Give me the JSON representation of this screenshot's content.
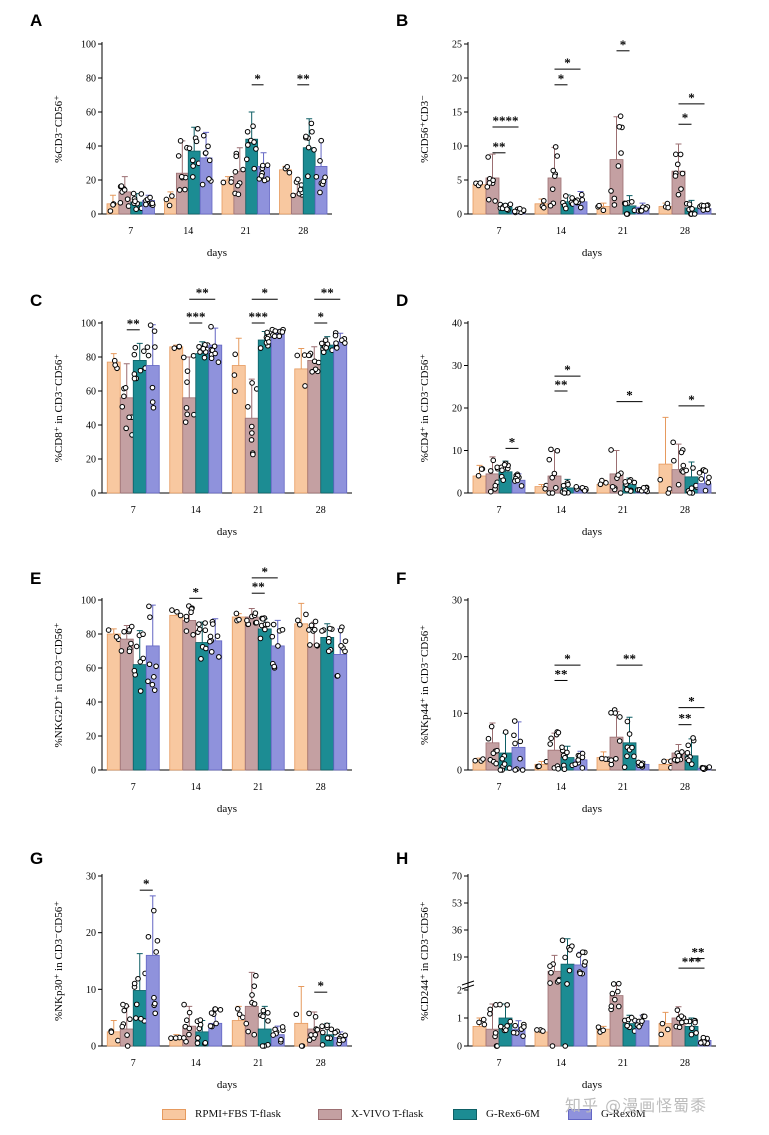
{
  "colors": {
    "RPMI+FBS T-flask": "#f8c8a0",
    "X-VIVO T-flask": "#c4a0a2",
    "G-Rex6-6M": "#1c8c93",
    "G-Rex6M": "#8f92dc",
    "RPMI+FBS T-flask_edge": "#e69a5e",
    "X-VIVO T-flask_edge": "#9c6f72",
    "G-Rex6-6M_edge": "#0e5f65",
    "G-Rex6M_edge": "#6366c4"
  },
  "legend": {
    "items": [
      {
        "name": "RPMI+FBS T-flask"
      },
      {
        "name": "X-VIVO T-flask"
      },
      {
        "name": "G-Rex6-6M"
      },
      {
        "name": "G-Rex6M"
      }
    ]
  },
  "watermark": "知乎 @漫画怪蜀黍",
  "chart_data": [
    {
      "panel": "A",
      "type": "bar",
      "ylabel": "%CD3⁻CD56⁺",
      "xlabel": "days",
      "ylim": [
        0,
        100
      ],
      "yticks": [
        0,
        20,
        40,
        60,
        80,
        100
      ],
      "categories": [
        "7",
        "14",
        "21",
        "28"
      ],
      "series": [
        {
          "name": "RPMI+FBS T-flask",
          "values": [
            6,
            9,
            20,
            26
          ],
          "err": [
            5,
            4,
            2,
            2
          ]
        },
        {
          "name": "X-VIVO T-flask",
          "values": [
            13,
            24,
            25,
            12
          ],
          "err": [
            9,
            19,
            14,
            8
          ]
        },
        {
          "name": "G-Rex6-6M",
          "values": [
            7,
            37,
            44,
            39
          ],
          "err": [
            5,
            14,
            16,
            17
          ]
        },
        {
          "name": "G-Rex6M",
          "values": [
            8,
            33,
            28,
            28
          ],
          "err": [
            3,
            15,
            8,
            15
          ]
        }
      ],
      "significance": [
        {
          "cat": 2,
          "from": 2,
          "to": 3,
          "label": "*",
          "y": 76
        },
        {
          "cat": 3,
          "from": 1,
          "to": 2,
          "label": "**",
          "y": 76
        }
      ]
    },
    {
      "panel": "B",
      "type": "bar",
      "ylabel": "%CD56⁺CD3⁻",
      "xlabel": "days",
      "ylim": [
        0,
        25
      ],
      "yticks": [
        0,
        5,
        10,
        15,
        20,
        25
      ],
      "categories": [
        "7",
        "14",
        "21",
        "28"
      ],
      "series": [
        {
          "name": "RPMI+FBS T-flask",
          "values": [
            4.3,
            1.5,
            1.1,
            1.1
          ],
          "err": [
            0.3,
            0.7,
            0.5,
            0.5
          ]
        },
        {
          "name": "X-VIVO T-flask",
          "values": [
            5.3,
            5.3,
            8.0,
            6.3
          ],
          "err": [
            3.5,
            4.5,
            6.3,
            4.0
          ]
        },
        {
          "name": "G-Rex6-6M",
          "values": [
            1.0,
            1.8,
            1.2,
            0.9
          ],
          "err": [
            0.5,
            1.0,
            1.5,
            1.1
          ]
        },
        {
          "name": "G-Rex6M",
          "values": [
            0.5,
            1.8,
            1.0,
            0.8
          ],
          "err": [
            0.3,
            1.5,
            0.6,
            0.5
          ]
        }
      ],
      "significance": [
        {
          "cat": 0,
          "from": 1,
          "to": 2,
          "label": "**",
          "y": 9.0
        },
        {
          "cat": 0,
          "from": 1,
          "to": 3,
          "label": "****",
          "y": 12.8
        },
        {
          "cat": 1,
          "from": 1,
          "to": 2,
          "label": "*",
          "y": 19.0
        },
        {
          "cat": 1,
          "from": 1,
          "to": 3,
          "label": "*",
          "y": 21.3
        },
        {
          "cat": 2,
          "from": 1,
          "to": 2,
          "label": "*",
          "y": 24.0
        },
        {
          "cat": 3,
          "from": 1,
          "to": 2,
          "label": "*",
          "y": 13.2
        },
        {
          "cat": 3,
          "from": 1,
          "to": 3,
          "label": "*",
          "y": 16.2
        }
      ]
    },
    {
      "panel": "C",
      "type": "bar",
      "ylabel": "%CD8⁺ in CD3⁻CD56⁺",
      "xlabel": "days",
      "ylim": [
        0,
        100
      ],
      "yticks": [
        0,
        20,
        40,
        60,
        80,
        100
      ],
      "categories": [
        "7",
        "14",
        "21",
        "28"
      ],
      "series": [
        {
          "name": "RPMI+FBS T-flask",
          "values": [
            77,
            86,
            75,
            73
          ],
          "err": [
            5,
            1,
            16,
            12
          ]
        },
        {
          "name": "X-VIVO T-flask",
          "values": [
            56,
            56,
            44,
            78
          ],
          "err": [
            20,
            24,
            23,
            8
          ]
        },
        {
          "name": "G-Rex6-6M",
          "values": [
            78,
            82,
            90,
            87
          ],
          "err": [
            10,
            7,
            5,
            5
          ]
        },
        {
          "name": "G-Rex6M",
          "values": [
            75,
            87,
            94,
            89
          ],
          "err": [
            24,
            10,
            2,
            5
          ]
        }
      ],
      "significance": [
        {
          "cat": 0,
          "from": 1,
          "to": 2,
          "label": "**",
          "y": 96
        },
        {
          "cat": 1,
          "from": 1,
          "to": 2,
          "label": "***",
          "y": 100
        },
        {
          "cat": 1,
          "from": 1,
          "to": 3,
          "label": "**",
          "y": 114
        },
        {
          "cat": 2,
          "from": 1,
          "to": 2,
          "label": "***",
          "y": 100
        },
        {
          "cat": 2,
          "from": 1,
          "to": 3,
          "label": "*",
          "y": 114
        },
        {
          "cat": 3,
          "from": 1,
          "to": 2,
          "label": "*",
          "y": 100
        },
        {
          "cat": 3,
          "from": 1,
          "to": 3,
          "label": "**",
          "y": 114
        }
      ]
    },
    {
      "panel": "D",
      "type": "bar",
      "ylabel": "%CD4⁺ in CD3⁻CD56⁺",
      "xlabel": "days",
      "ylim": [
        0,
        40
      ],
      "yticks": [
        0,
        10,
        20,
        30,
        40
      ],
      "categories": [
        "7",
        "14",
        "21",
        "28"
      ],
      "series": [
        {
          "name": "RPMI+FBS T-flask",
          "values": [
            4.0,
            1.5,
            2.0,
            6.8
          ],
          "err": [
            2.5,
            0.5,
            1.0,
            11.0
          ]
        },
        {
          "name": "X-VIVO T-flask",
          "values": [
            4.5,
            4.0,
            4.5,
            5.5
          ],
          "err": [
            4.0,
            6.0,
            5.5,
            6.0
          ]
        },
        {
          "name": "G-Rex6-6M",
          "values": [
            5.0,
            1.2,
            2.0,
            3.8
          ],
          "err": [
            2.5,
            2.0,
            1.5,
            3.5
          ]
        },
        {
          "name": "G-Rex6M",
          "values": [
            3.0,
            1.0,
            0.8,
            2.2
          ],
          "err": [
            1.5,
            0.5,
            0.5,
            3.0
          ]
        }
      ],
      "significance": [
        {
          "cat": 0,
          "from": 2,
          "to": 3,
          "label": "*",
          "y": 10.5
        },
        {
          "cat": 1,
          "from": 1,
          "to": 2,
          "label": "**",
          "y": 24.0
        },
        {
          "cat": 1,
          "from": 1,
          "to": 3,
          "label": "*",
          "y": 27.5
        },
        {
          "cat": 2,
          "from": 1,
          "to": 3,
          "label": "*",
          "y": 21.5
        },
        {
          "cat": 3,
          "from": 1,
          "to": 3,
          "label": "*",
          "y": 20.5
        }
      ]
    },
    {
      "panel": "E",
      "type": "bar",
      "ylabel": "%NKG2D⁺ in CD3⁻CD56⁺",
      "xlabel": "days",
      "ylim": [
        0,
        100
      ],
      "yticks": [
        0,
        20,
        40,
        60,
        80,
        100
      ],
      "categories": [
        "7",
        "14",
        "21",
        "28"
      ],
      "series": [
        {
          "name": "RPMI+FBS T-flask",
          "values": [
            80,
            91,
            90,
            86
          ],
          "err": [
            3,
            3,
            2,
            12
          ]
        },
        {
          "name": "X-VIVO T-flask",
          "values": [
            77,
            88,
            90,
            74
          ],
          "err": [
            8,
            8,
            5,
            13
          ]
        },
        {
          "name": "G-Rex6-6M",
          "values": [
            62,
            75,
            83,
            78
          ],
          "err": [
            20,
            12,
            6,
            8
          ]
        },
        {
          "name": "G-Rex6M",
          "values": [
            73,
            76,
            73,
            68
          ],
          "err": [
            24,
            13,
            15,
            15
          ]
        }
      ],
      "significance": [
        {
          "cat": 1,
          "from": 1,
          "to": 2,
          "label": "*",
          "y": 101
        },
        {
          "cat": 2,
          "from": 1,
          "to": 2,
          "label": "**",
          "y": 104
        },
        {
          "cat": 2,
          "from": 1,
          "to": 3,
          "label": "*",
          "y": 113
        }
      ]
    },
    {
      "panel": "F",
      "type": "bar",
      "ylabel": "%NKp44⁺ in CD3⁻CD56⁺",
      "xlabel": "days",
      "ylim": [
        0,
        30
      ],
      "yticks": [
        0,
        10,
        20,
        30
      ],
      "categories": [
        "7",
        "14",
        "21",
        "28"
      ],
      "series": [
        {
          "name": "RPMI+FBS T-flask",
          "values": [
            1.8,
            1.0,
            2.2,
            1.0
          ],
          "err": [
            0.3,
            0.5,
            1.0,
            0.8
          ]
        },
        {
          "name": "X-VIVO T-flask",
          "values": [
            4.8,
            3.5,
            5.8,
            3.0
          ],
          "err": [
            3.5,
            3.0,
            4.5,
            1.5
          ]
        },
        {
          "name": "G-Rex6-6M",
          "values": [
            3.0,
            2.2,
            4.8,
            2.5
          ],
          "err": [
            3.5,
            2.0,
            4.5,
            3.0
          ]
        },
        {
          "name": "G-Rex6M",
          "values": [
            4.0,
            1.8,
            1.0,
            0.3
          ],
          "err": [
            4.5,
            1.5,
            0.5,
            0.2
          ]
        }
      ],
      "significance": [
        {
          "cat": 1,
          "from": 1,
          "to": 2,
          "label": "**",
          "y": 15.8
        },
        {
          "cat": 1,
          "from": 1,
          "to": 3,
          "label": "*",
          "y": 18.5
        },
        {
          "cat": 2,
          "from": 1,
          "to": 3,
          "label": "**",
          "y": 18.5
        },
        {
          "cat": 3,
          "from": 1,
          "to": 2,
          "label": "**",
          "y": 8.0
        },
        {
          "cat": 3,
          "from": 1,
          "to": 3,
          "label": "*",
          "y": 11.0
        }
      ]
    },
    {
      "panel": "G",
      "type": "bar",
      "ylabel": "%NKp30⁺ in CD3⁻CD56⁺",
      "xlabel": "days",
      "ylim": [
        0,
        30
      ],
      "yticks": [
        0,
        10,
        20,
        30
      ],
      "categories": [
        "7",
        "14",
        "21",
        "28"
      ],
      "series": [
        {
          "name": "RPMI+FBS T-flask",
          "values": [
            2.5,
            1.5,
            4.5,
            4.0
          ],
          "err": [
            2.0,
            0.5,
            2.5,
            6.5
          ]
        },
        {
          "name": "X-VIVO T-flask",
          "values": [
            3.0,
            3.5,
            7.0,
            3.0
          ],
          "err": [
            4.0,
            3.5,
            6.0,
            3.0
          ]
        },
        {
          "name": "G-Rex6-6M",
          "values": [
            9.8,
            2.5,
            3.0,
            2.0
          ],
          "err": [
            6.5,
            2.0,
            4.0,
            2.0
          ]
        },
        {
          "name": "G-Rex6M",
          "values": [
            16.0,
            4.0,
            2.0,
            1.5
          ],
          "err": [
            10.5,
            2.5,
            1.5,
            1.0
          ]
        }
      ],
      "significance": [
        {
          "cat": 0,
          "from": 2,
          "to": 3,
          "label": "*",
          "y": 27.5
        },
        {
          "cat": 3,
          "from": 1,
          "to": 2,
          "label": "*",
          "y": 9.5
        }
      ]
    },
    {
      "panel": "H",
      "type": "bar",
      "ylabel": "%CD244⁺ in CD3⁻CD56⁺",
      "xlabel": "days",
      "ylim": [
        0,
        70
      ],
      "yticks": [
        0,
        1,
        2,
        19,
        36,
        53,
        70
      ],
      "axis_break": [
        2,
        2
      ],
      "categories": [
        "7",
        "14",
        "21",
        "28"
      ],
      "series": [
        {
          "name": "RPMI+FBS T-flask",
          "values": [
            0.7,
            0.5,
            0.6,
            0.8
          ],
          "err": [
            0.3,
            0.1,
            0.1,
            0.4
          ]
        },
        {
          "name": "X-VIVO T-flask",
          "values": [
            0.6,
            10.0,
            1.8,
            1.0
          ],
          "err": [
            0.9,
            10.0,
            0.6,
            0.4
          ]
        },
        {
          "name": "G-Rex6-6M",
          "values": [
            1.0,
            14.5,
            0.8,
            0.7
          ],
          "err": [
            0.5,
            16.0,
            0.3,
            0.3
          ]
        },
        {
          "name": "G-Rex6M",
          "values": [
            0.6,
            14.0,
            0.9,
            0.2
          ],
          "err": [
            0.3,
            8.0,
            0.2,
            0.1
          ]
        }
      ],
      "significance": [
        {
          "cat": 3,
          "from": 1,
          "to": 3,
          "label": "***",
          "y": 12.0
        },
        {
          "cat": 3,
          "from": 2,
          "to": 3,
          "label": "**",
          "y": 18.0
        }
      ]
    }
  ]
}
